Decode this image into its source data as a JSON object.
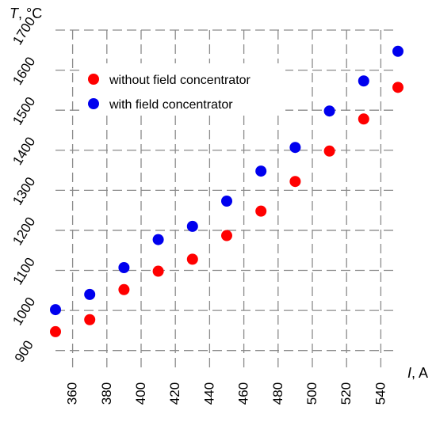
{
  "chart_data": {
    "type": "scatter",
    "xlabel": {
      "var": "I",
      "unit": ", A"
    },
    "ylabel": {
      "var": "T",
      "unit": ", °C"
    },
    "xlim": [
      350,
      550
    ],
    "ylim": [
      850,
      1700
    ],
    "xticks": [
      360,
      380,
      400,
      420,
      440,
      460,
      480,
      500,
      520,
      540
    ],
    "yticks": [
      900,
      1000,
      1100,
      1200,
      1300,
      1400,
      1500,
      1600,
      1700
    ],
    "grid": true,
    "legend_position": "top-left",
    "series": [
      {
        "name": "without field concentrator",
        "color": "#ff0000",
        "x": [
          350,
          370,
          390,
          410,
          430,
          450,
          470,
          490,
          510,
          530,
          550
        ],
        "y": [
          947,
          977,
          1052,
          1098,
          1128,
          1187,
          1248,
          1322,
          1398,
          1478,
          1557
        ]
      },
      {
        "name": "with field concentrator",
        "color": "#0000ee",
        "x": [
          350,
          370,
          390,
          410,
          430,
          450,
          470,
          490,
          510,
          530,
          550
        ],
        "y": [
          1002,
          1040,
          1107,
          1177,
          1210,
          1273,
          1348,
          1407,
          1498,
          1573,
          1647
        ]
      }
    ]
  }
}
